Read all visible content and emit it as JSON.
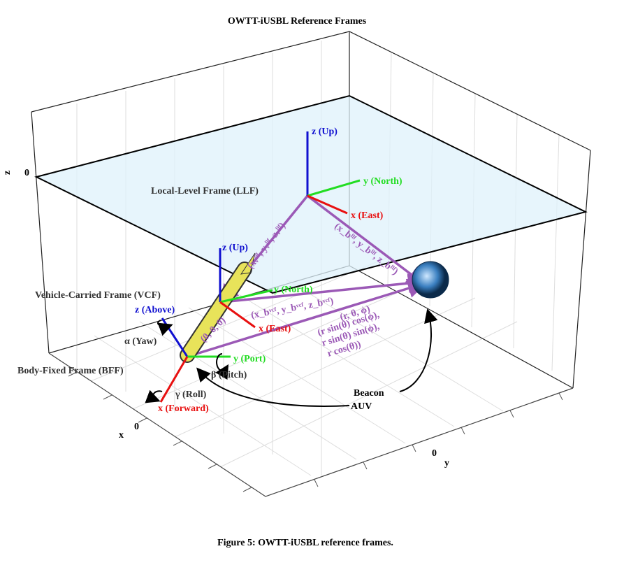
{
  "title": "OWTT-iUSBL Reference Frames",
  "axes": {
    "z_label": "z",
    "z_tick": 0,
    "x_label": "x",
    "x_tick": 0,
    "y_label": "y",
    "y_tick": 0
  },
  "llf": {
    "name": "Local-Level Frame (LLF)",
    "z": "z (Up)",
    "y": "y (North)",
    "x": "x (East)"
  },
  "vcf": {
    "name": "Vehicle-Carried Frame (VCF)",
    "z": "z (Up)",
    "y": "y (North)",
    "x": "x (East)"
  },
  "bff": {
    "name": "Body-Fixed Frame (BFF)",
    "z": "z (Above)",
    "y": "y (Port)",
    "x": "x (Forward)",
    "yaw": "α (Yaw)",
    "pitch": "β (Pitch)",
    "roll": "γ (Roll)"
  },
  "vectors": {
    "vcf_in_llf": "(xᵥˡˡᶠ, yᵥˡˡᶠ, zᵥˡˡᶠ)",
    "beacon_in_llf": "(x_bˡˡᶠ, y_bˡˡᶠ, z_bˡˡᶠ)",
    "beacon_in_vcf": "(x_bᵛᶜᶠ, y_bᵛᶜᶠ, z_bᵛᶜᶠ)",
    "bff_origin": "(0, 0, 0)",
    "spherical": "(r, θ, ϕ)",
    "cart_1": "(r sin(θ) cos(ϕ),",
    "cart_2": "r sin(θ) sin(ϕ),",
    "cart_3": "r cos(θ))"
  },
  "labels": {
    "beacon": "Beacon",
    "auv": "AUV"
  },
  "caption": "Figure 5: OWTT-iUSBL reference frames."
}
